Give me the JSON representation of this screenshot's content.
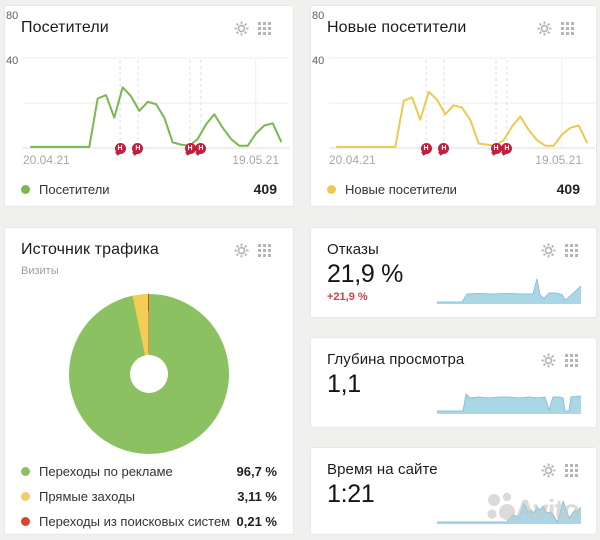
{
  "page": {
    "background": "#f0f0ee",
    "watermark_text": "Avito"
  },
  "cards": {
    "visitors": {
      "title": "Посетители",
      "legend_label": "Посетители",
      "legend_value": "409"
    },
    "new_visitors": {
      "title": "Новые посетители",
      "legend_label": "Новые посетители",
      "legend_value": "409"
    },
    "traffic_source": {
      "title": "Источник трафика",
      "subtitle": "Визиты",
      "legend": [
        {
          "label": "Переходы по рекламе",
          "value": "96,7 %",
          "color": "#8cc162"
        },
        {
          "label": "Прямые заходы",
          "value": "3,11 %",
          "color": "#f2cd67"
        },
        {
          "label": "Переходы из поисковых систем",
          "value": "0,21 %",
          "color": "#d9452f"
        }
      ]
    },
    "bounces": {
      "title": "Отказы",
      "value": "21,9 %",
      "delta": "+21,9 %"
    },
    "depth": {
      "title": "Глубина просмотра",
      "value": "1,1"
    },
    "time_on_site": {
      "title": "Время на сайте",
      "value": "1:21"
    }
  },
  "chart_data": [
    {
      "type": "line",
      "title": "Посетители",
      "x_start_label": "20.04.21",
      "x_end_label": "19.05.21",
      "yticks": [
        40,
        80
      ],
      "ylim": [
        0,
        88
      ],
      "color": "#79b84e",
      "grid": true,
      "vline_pos": 0.875,
      "marker_color": "#c11f3e",
      "markers": [
        {
          "label": "Н",
          "pos": 0.365
        },
        {
          "label": "Н",
          "pos": 0.432
        },
        {
          "label": "Н",
          "pos": 0.628
        },
        {
          "label": "Н",
          "pos": 0.669
        }
      ],
      "values": [
        1,
        1,
        1,
        1,
        1,
        1,
        1,
        1,
        44,
        47,
        27,
        54,
        46,
        33,
        41,
        39,
        27,
        5,
        3,
        2,
        8,
        21,
        30,
        18,
        8,
        2,
        2,
        13,
        20,
        22,
        6
      ],
      "total": 409
    },
    {
      "type": "line",
      "title": "Новые посетители",
      "x_start_label": "20.04.21",
      "x_end_label": "19.05.21",
      "yticks": [
        40,
        80
      ],
      "ylim": [
        0,
        88
      ],
      "color": "#eec94f",
      "grid": true,
      "vline_pos": 0.875,
      "marker_color": "#c11f3e",
      "markers": [
        {
          "label": "Н",
          "pos": 0.365
        },
        {
          "label": "Н",
          "pos": 0.432
        },
        {
          "label": "Н",
          "pos": 0.628
        },
        {
          "label": "Н",
          "pos": 0.669
        }
      ],
      "values": [
        1,
        1,
        1,
        1,
        1,
        1,
        1,
        1,
        42,
        45,
        25,
        50,
        43,
        30,
        38,
        36,
        25,
        4,
        3,
        2,
        7,
        19,
        28,
        16,
        7,
        2,
        2,
        12,
        18,
        20,
        5
      ],
      "total": 409
    },
    {
      "type": "donut",
      "title": "Источник трафика",
      "subtitle": "Визиты",
      "labels": [
        "Переходы по рекламе",
        "Прямые заходы",
        "Переходы из поисковых систем"
      ],
      "values": [
        96.7,
        3.11,
        0.21
      ],
      "colors": [
        "#8cc162",
        "#f4cd55",
        "#d9452f"
      ],
      "start_angle_deg": 0,
      "direction": "clockwise"
    },
    {
      "type": "area",
      "title": "Отказы",
      "fill": "#a9d7e6",
      "stroke": "#8cc3d9",
      "baseline": 29,
      "points": [
        [
          0,
          27
        ],
        [
          25,
          27
        ],
        [
          30,
          19
        ],
        [
          42,
          18.5
        ],
        [
          55,
          19
        ],
        [
          70,
          18.5
        ],
        [
          85,
          19
        ],
        [
          96,
          19
        ],
        [
          100,
          4
        ],
        [
          103,
          20
        ],
        [
          107,
          23.5
        ],
        [
          112,
          18
        ],
        [
          119,
          18
        ],
        [
          125,
          19.5
        ],
        [
          128,
          25
        ],
        [
          131,
          23
        ],
        [
          144,
          11
        ]
      ]
    },
    {
      "type": "area",
      "title": "Глубина просмотра",
      "fill": "#a9d7e6",
      "stroke": "#8cc3d9",
      "baseline": 29,
      "points": [
        [
          0,
          26
        ],
        [
          26,
          26
        ],
        [
          29,
          9
        ],
        [
          33,
          13
        ],
        [
          42,
          12
        ],
        [
          52,
          13
        ],
        [
          62,
          12
        ],
        [
          72,
          12
        ],
        [
          82,
          13
        ],
        [
          92,
          12
        ],
        [
          101,
          13
        ],
        [
          108,
          12
        ],
        [
          112,
          25
        ],
        [
          116,
          12
        ],
        [
          122,
          12
        ],
        [
          126,
          13
        ],
        [
          128,
          26
        ],
        [
          132,
          26
        ],
        [
          134,
          12
        ],
        [
          144,
          11
        ]
      ]
    },
    {
      "type": "area",
      "title": "Время на сайте",
      "fill": "#a9d7e6",
      "stroke": "#8cc3d9",
      "baseline": 29,
      "points": [
        [
          0,
          27
        ],
        [
          70,
          27
        ],
        [
          76,
          20
        ],
        [
          82,
          22
        ],
        [
          87,
          8
        ],
        [
          91,
          17
        ],
        [
          94,
          15
        ],
        [
          97,
          18
        ],
        [
          100,
          12
        ],
        [
          103,
          15
        ],
        [
          106,
          11
        ],
        [
          110,
          18
        ],
        [
          114,
          17
        ],
        [
          117,
          21
        ],
        [
          120,
          27
        ],
        [
          123,
          19
        ],
        [
          126,
          6
        ],
        [
          129,
          14
        ],
        [
          132,
          23
        ],
        [
          135,
          19
        ],
        [
          138,
          15
        ],
        [
          140,
          17
        ],
        [
          144,
          12
        ]
      ]
    }
  ]
}
